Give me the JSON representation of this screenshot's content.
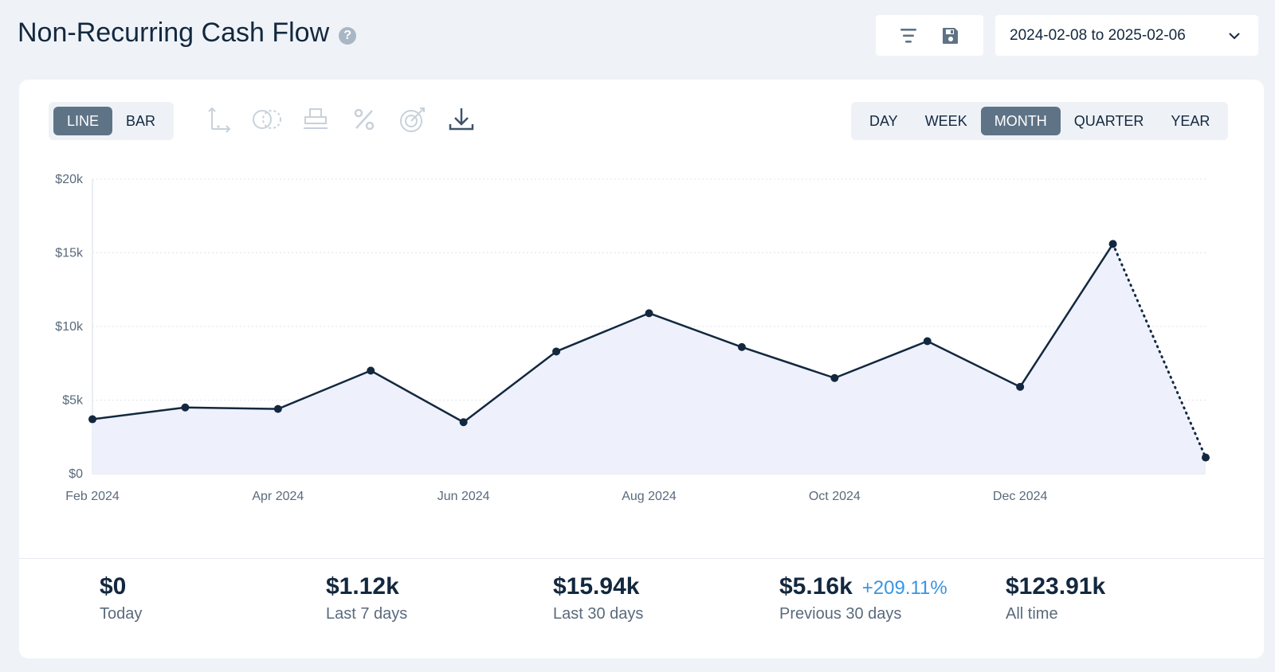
{
  "header": {
    "title": "Non-Recurring Cash Flow",
    "help_icon": "?",
    "date_range": "2024-02-08 to 2025-02-06"
  },
  "toolbar": {
    "icons": [
      "filter-icon",
      "save-icon"
    ]
  },
  "chart_type_toggle": [
    {
      "label": "LINE",
      "active": true
    },
    {
      "label": "BAR",
      "active": false
    }
  ],
  "chart_tools": [
    "axis-icon",
    "overlap-icon",
    "stack-icon",
    "percent-icon",
    "target-icon",
    "download-icon"
  ],
  "period_toggle": [
    {
      "label": "DAY",
      "active": false
    },
    {
      "label": "WEEK",
      "active": false
    },
    {
      "label": "MONTH",
      "active": true
    },
    {
      "label": "QUARTER",
      "active": false
    },
    {
      "label": "YEAR",
      "active": false
    }
  ],
  "colors": {
    "line": "#13283f",
    "area": "#eef1fb",
    "active_toggle": "#5f7386",
    "delta_positive": "#3a95e0"
  },
  "chart_data": {
    "type": "line",
    "x": [
      "2024-02",
      "2024-03",
      "2024-04",
      "2024-05",
      "2024-06",
      "2024-07",
      "2024-08",
      "2024-09",
      "2024-10",
      "2024-11",
      "2024-12",
      "2025-01",
      "2025-02"
    ],
    "values": [
      3700,
      4500,
      4400,
      7000,
      3500,
      8300,
      10900,
      8600,
      6500,
      9000,
      5900,
      15600,
      1100
    ],
    "partial_last_point": true,
    "y_ticks": [
      "$0",
      "$5k",
      "$10k",
      "$15k",
      "$20k"
    ],
    "ylim": [
      0,
      20000
    ],
    "x_tick_labels": [
      {
        "label": "Feb 2024",
        "index": 0
      },
      {
        "label": "Apr 2024",
        "index": 2
      },
      {
        "label": "Jun 2024",
        "index": 4
      },
      {
        "label": "Aug 2024",
        "index": 6
      },
      {
        "label": "Oct 2024",
        "index": 8
      },
      {
        "label": "Dec 2024",
        "index": 10
      }
    ],
    "grid": true
  },
  "stats": [
    {
      "value": "$0",
      "label": "Today",
      "delta": ""
    },
    {
      "value": "$1.12k",
      "label": "Last 7 days",
      "delta": ""
    },
    {
      "value": "$15.94k",
      "label": "Last 30 days",
      "delta": ""
    },
    {
      "value": "$5.16k",
      "label": "Previous 30 days",
      "delta": "+209.11%"
    },
    {
      "value": "$123.91k",
      "label": "All time",
      "delta": ""
    }
  ]
}
